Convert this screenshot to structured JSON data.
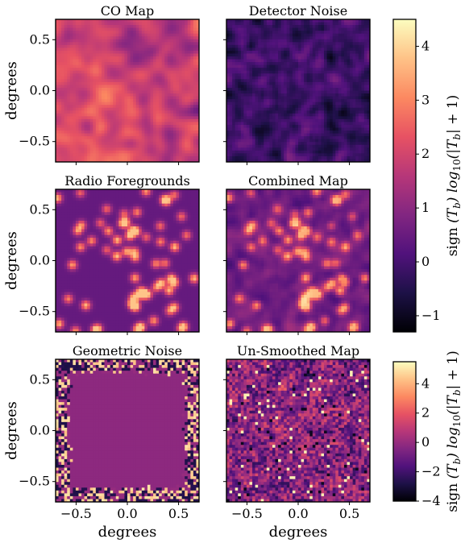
{
  "figure": {
    "panels": [
      {
        "title": "CO Map",
        "kind": "co"
      },
      {
        "title": "Detector Noise",
        "kind": "noise"
      },
      {
        "title": "Radio Foregrounds",
        "kind": "radio"
      },
      {
        "title": "Combined Map",
        "kind": "combined"
      },
      {
        "title": "Geometric Noise",
        "kind": "geometric"
      },
      {
        "title": "Un-Smoothed Map",
        "kind": "unsmoothed"
      }
    ],
    "axis_label": "degrees",
    "colormap": "magma",
    "colormap_stops": [
      "#000004",
      "#1d1147",
      "#51127c",
      "#822681",
      "#b73779",
      "#e75263",
      "#fc8961",
      "#fec287",
      "#fcfdbf"
    ],
    "colorbar_label": "sign $(T_b)\\ log_{10}(|T_b|+1)$",
    "colorbar_label_parts": {
      "prefix": "sign ",
      "tb1": "(T",
      "sub1": "b",
      "mid": ") log",
      "sub2": "10",
      "open": "(|T",
      "sub3": "b",
      "tail": "| + 1)"
    }
  },
  "chart_data": [
    {
      "type": "heatmap",
      "title": "CO Map",
      "xlabel": "",
      "ylabel": "degrees",
      "xlim": [
        -0.7,
        0.7
      ],
      "ylim": [
        -0.7,
        0.7
      ],
      "xticks": [],
      "yticks": [
        "−0.5",
        "0.0",
        "0.5"
      ],
      "value_range": [
        0,
        2.5
      ]
    },
    {
      "type": "heatmap",
      "title": "Detector Noise",
      "xlabel": "",
      "ylabel": "",
      "xlim": [
        -0.7,
        0.7
      ],
      "ylim": [
        -0.7,
        0.7
      ],
      "xticks": [],
      "yticks": [],
      "value_range": [
        -1.3,
        1.3
      ]
    },
    {
      "type": "heatmap",
      "title": "Radio Foregrounds",
      "xlabel": "",
      "ylabel": "degrees",
      "xlim": [
        -0.7,
        0.7
      ],
      "ylim": [
        -0.7,
        0.7
      ],
      "xticks": [],
      "yticks": [
        "−0.5",
        "0.0",
        "0.5"
      ],
      "value_range": [
        0,
        4.5
      ]
    },
    {
      "type": "heatmap",
      "title": "Combined Map",
      "xlabel": "",
      "ylabel": "",
      "xlim": [
        -0.7,
        0.7
      ],
      "ylim": [
        -0.7,
        0.7
      ],
      "xticks": [],
      "yticks": [],
      "value_range": [
        -1.3,
        4.5
      ]
    },
    {
      "type": "heatmap",
      "title": "Geometric Noise",
      "xlabel": "degrees",
      "ylabel": "degrees",
      "xlim": [
        -0.7,
        0.7
      ],
      "ylim": [
        -0.7,
        0.7
      ],
      "xticks": [
        "−0.5",
        "0.0",
        "0.5"
      ],
      "yticks": [
        "−0.5",
        "0.0",
        "0.5"
      ],
      "value_range": [
        -4,
        5.5
      ]
    },
    {
      "type": "heatmap",
      "title": "Un-Smoothed Map",
      "xlabel": "degrees",
      "ylabel": "",
      "xlim": [
        -0.7,
        0.7
      ],
      "ylim": [
        -0.7,
        0.7
      ],
      "xticks": [
        "−0.5",
        "0.0",
        "0.5"
      ],
      "yticks": [],
      "value_range": [
        -4,
        5.5
      ]
    },
    {
      "type": "colorbar",
      "applies_to": [
        "CO Map",
        "Detector Noise",
        "Radio Foregrounds",
        "Combined Map"
      ],
      "range": [
        -1.3,
        4.5
      ],
      "ticks": [
        -1,
        0,
        1,
        2,
        3,
        4
      ],
      "tick_labels": [
        "−1",
        "0",
        "1",
        "2",
        "3",
        "4"
      ],
      "label": "sign (T_b) log_10(|T_b| + 1)"
    },
    {
      "type": "colorbar",
      "applies_to": [
        "Geometric Noise",
        "Un-Smoothed Map"
      ],
      "range": [
        -4,
        5.5
      ],
      "ticks": [
        -4,
        -2,
        0,
        2,
        4
      ],
      "tick_labels": [
        "−4",
        "−2",
        "0",
        "2",
        "4"
      ],
      "label": "sign (T_b) log_10(|T_b| + 1)"
    }
  ]
}
